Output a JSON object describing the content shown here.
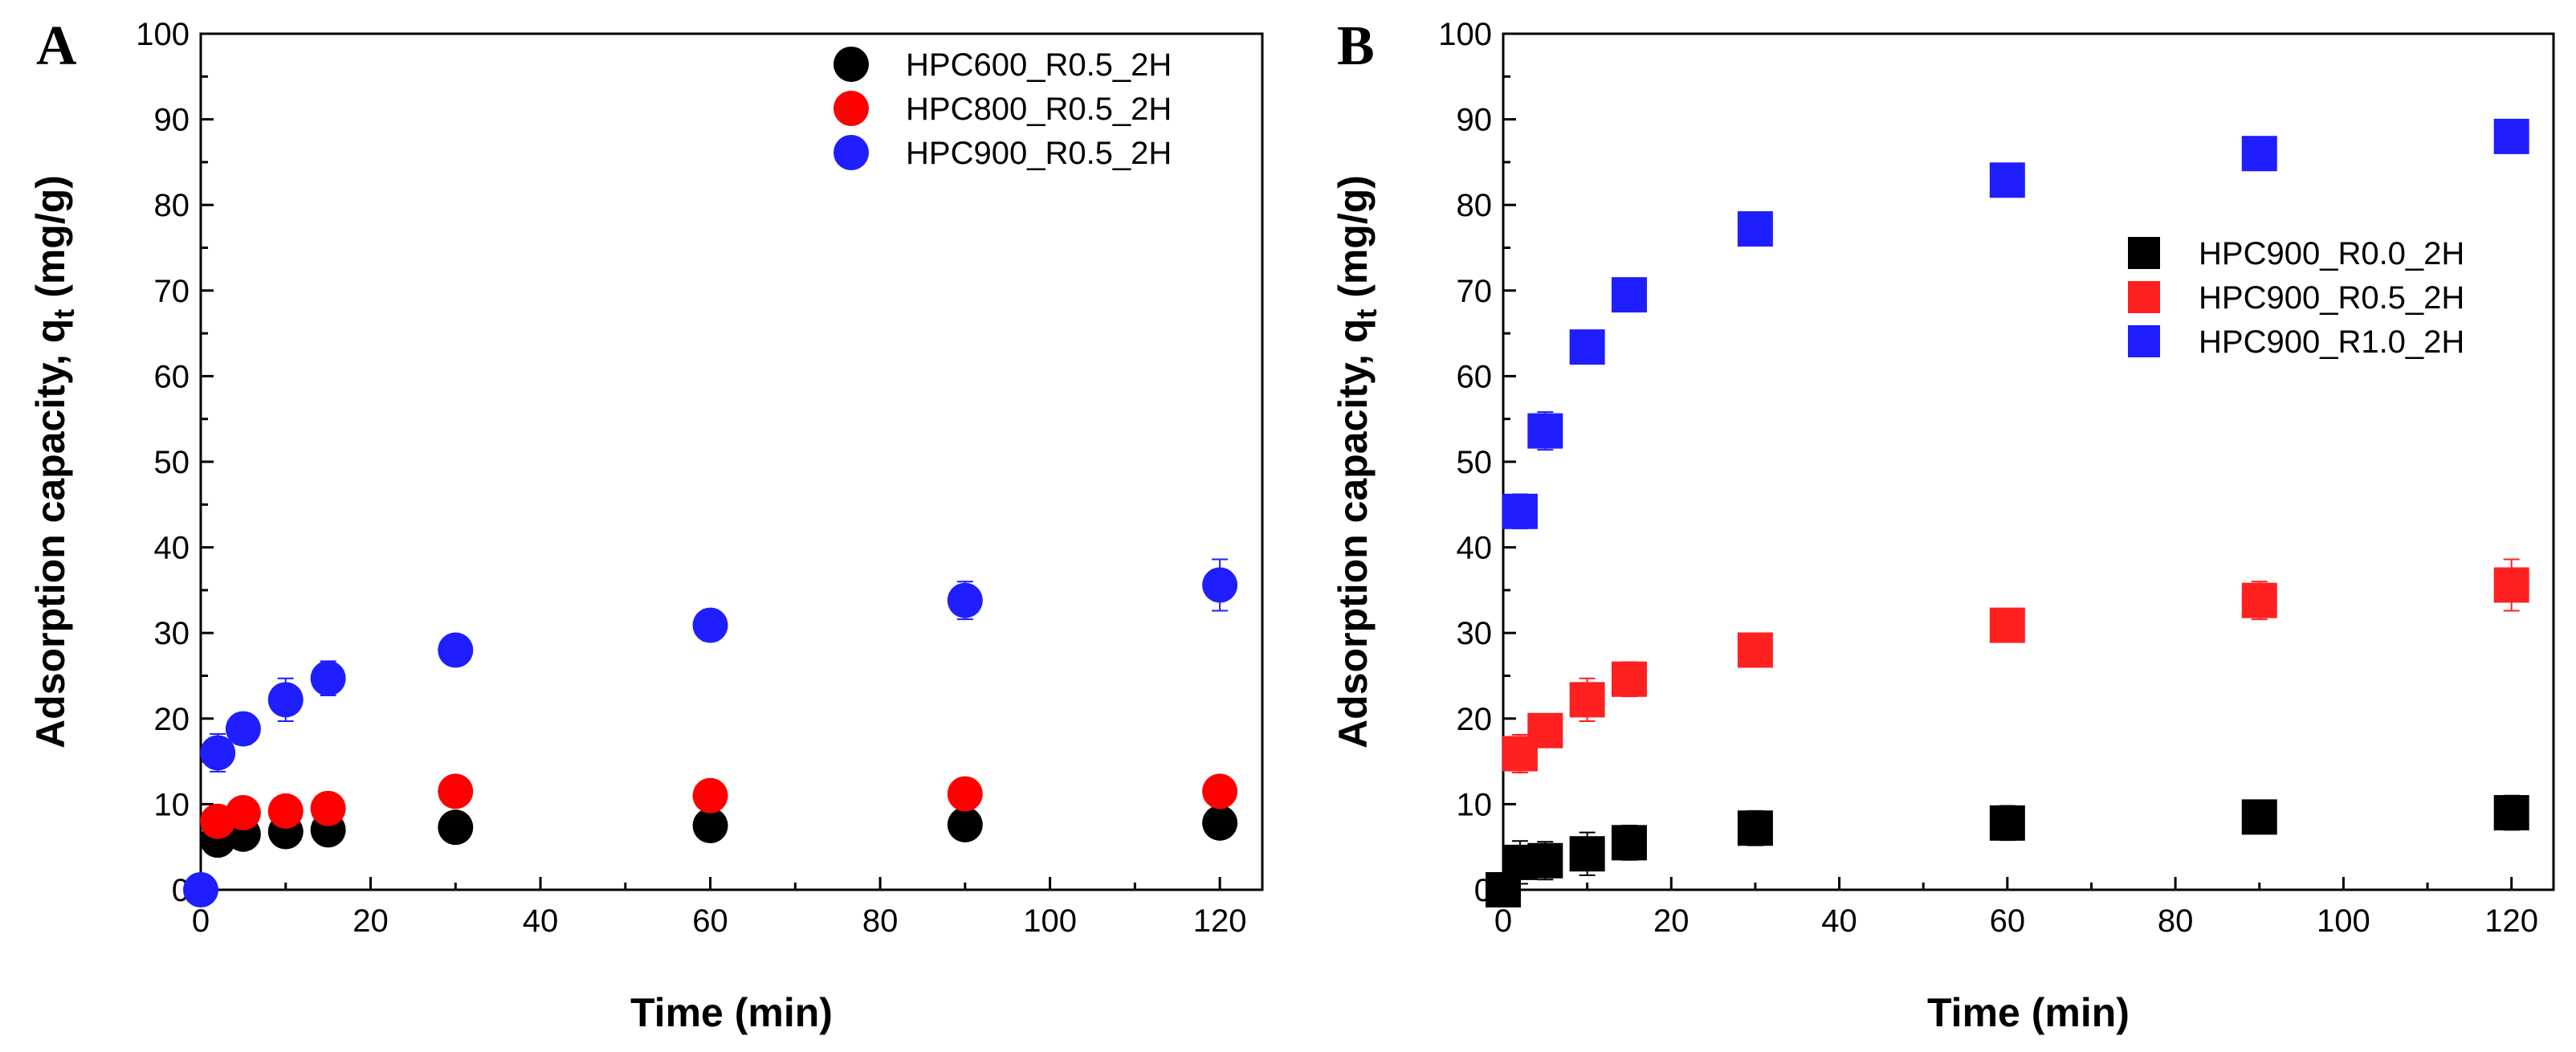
{
  "chart_data": [
    {
      "panel_label": "A",
      "type": "scatter",
      "marker": "circle",
      "xlabel": "Time (min)",
      "ylabel_main": "Adsorption capacity, q",
      "ylabel_sub": "t",
      "ylabel_unit": " (mg/g)",
      "xlim": [
        0,
        125
      ],
      "ylim": [
        0,
        100
      ],
      "xticks": [
        0,
        20,
        40,
        60,
        80,
        100,
        120
      ],
      "yticks": [
        0,
        10,
        20,
        30,
        40,
        50,
        60,
        70,
        80,
        90,
        100
      ],
      "legend_position": "top-right",
      "series": [
        {
          "name": "HPC600_R0.5_2H",
          "color": "#000000",
          "x": [
            2,
            5,
            10,
            15,
            30,
            60,
            90,
            120
          ],
          "y": [
            5.8,
            6.5,
            6.8,
            7.0,
            7.3,
            7.5,
            7.6,
            7.8
          ],
          "err": [
            0.5,
            0.5,
            0.5,
            0.5,
            0.5,
            0.5,
            0.5,
            0.5
          ]
        },
        {
          "name": "HPC800_R0.5_2H",
          "color": "#ff0000",
          "x": [
            2,
            5,
            10,
            15,
            30,
            60,
            90,
            120
          ],
          "y": [
            8.0,
            9.0,
            9.2,
            9.5,
            11.5,
            11.0,
            11.2,
            11.5
          ],
          "err": [
            0.5,
            0.5,
            0.5,
            0.5,
            0.5,
            0.5,
            0.5,
            0.5
          ]
        },
        {
          "name": "HPC900_R0.5_2H",
          "color": "#1e1eff",
          "x": [
            0,
            2,
            5,
            10,
            15,
            30,
            60,
            90,
            120
          ],
          "y": [
            0,
            16.0,
            18.8,
            22.2,
            24.7,
            28.0,
            30.9,
            33.8,
            35.6
          ],
          "err": [
            0,
            2.2,
            1.8,
            2.5,
            2.0,
            1.2,
            1.8,
            2.2,
            3.0
          ]
        }
      ]
    },
    {
      "panel_label": "B",
      "type": "scatter",
      "marker": "square",
      "xlabel": "Time (min)",
      "ylabel_main": "Adsorption capacity, q",
      "ylabel_sub": "t",
      "ylabel_unit": " (mg/g)",
      "xlim": [
        0,
        125
      ],
      "ylim": [
        0,
        100
      ],
      "xticks": [
        0,
        20,
        40,
        60,
        80,
        100,
        120
      ],
      "yticks": [
        0,
        10,
        20,
        30,
        40,
        50,
        60,
        70,
        80,
        90,
        100
      ],
      "legend_position": "center-right",
      "series": [
        {
          "name": "HPC900_R0.0_2H",
          "color": "#000000",
          "x": [
            0,
            2,
            5,
            10,
            15,
            30,
            60,
            90,
            120
          ],
          "y": [
            0,
            3.2,
            3.4,
            4.2,
            5.5,
            7.2,
            7.8,
            8.5,
            9.0
          ],
          "err": [
            0,
            2.5,
            2.2,
            2.5,
            2.0,
            2.0,
            2.0,
            1.5,
            2.0
          ]
        },
        {
          "name": "HPC900_R0.5_2H",
          "color": "#ff2020",
          "x": [
            2,
            5,
            10,
            15,
            30,
            60,
            90,
            120
          ],
          "y": [
            15.9,
            18.6,
            22.2,
            24.6,
            28.0,
            30.9,
            33.8,
            35.6
          ],
          "err": [
            2.2,
            1.8,
            2.5,
            2.0,
            1.2,
            1.8,
            2.2,
            3.0
          ]
        },
        {
          "name": "HPC900_R1.0_2H",
          "color": "#1e1eff",
          "x": [
            2,
            5,
            10,
            15,
            30,
            60,
            90,
            120
          ],
          "y": [
            44.2,
            53.6,
            63.4,
            69.5,
            77.2,
            82.9,
            86.0,
            88.0
          ],
          "err": [
            2.0,
            2.2,
            1.0,
            1.0,
            1.0,
            1.0,
            1.0,
            1.0
          ]
        }
      ]
    }
  ]
}
